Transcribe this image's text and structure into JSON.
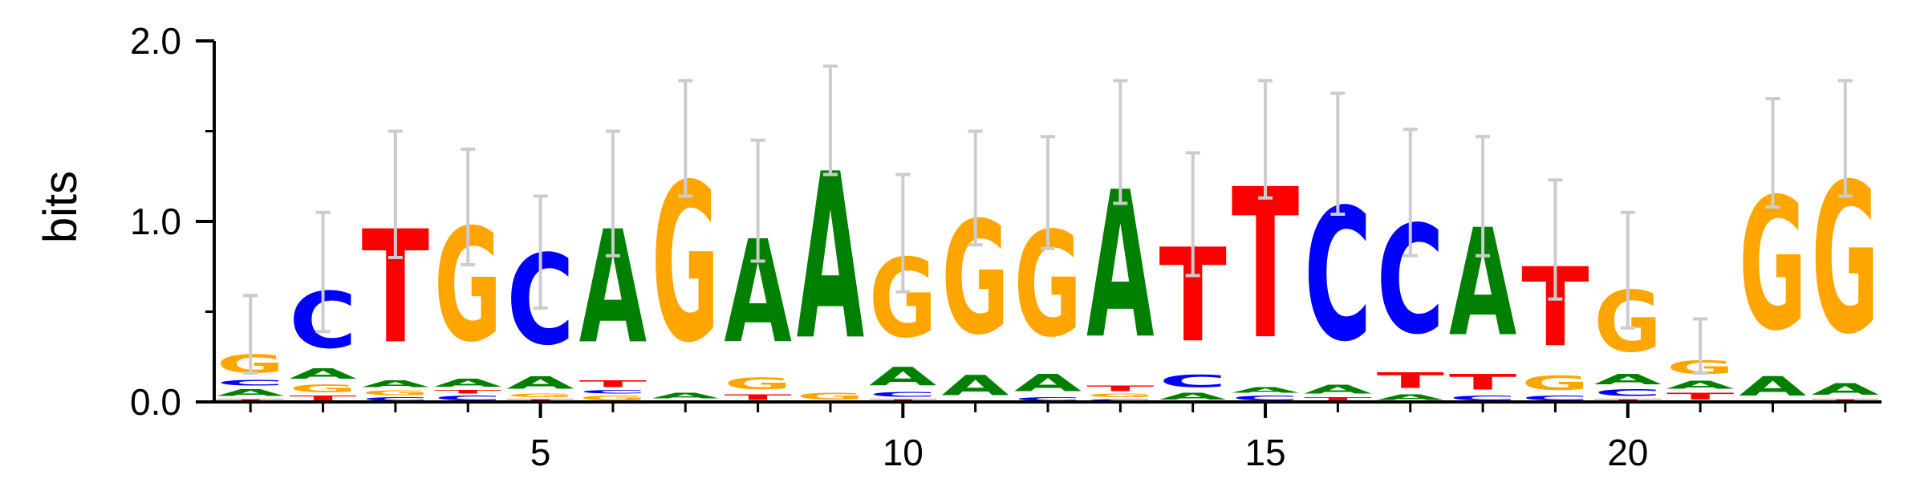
{
  "chart_data": {
    "type": "sequence-logo",
    "ylabel": "bits",
    "ylim": [
      0,
      2.0
    ],
    "y_ticks": [
      0.0,
      1.0,
      2.0
    ],
    "y_tick_labels": [
      "0.0",
      "1.0",
      "2.0"
    ],
    "x_ticks": [
      5,
      10,
      15,
      20
    ],
    "x_tick_labels": [
      "5",
      "10",
      "15",
      "20"
    ],
    "positions": 23,
    "colors": {
      "A": "#008000",
      "C": "#0000ff",
      "G": "#ffa500",
      "T": "#ff0000"
    },
    "error_bar_color": "#cccccc",
    "columns": [
      {
        "pos": 1,
        "stack": [
          [
            "T",
            0.02
          ],
          [
            "A",
            0.06
          ],
          [
            "C",
            0.05
          ],
          [
            "G",
            0.16
          ]
        ],
        "error": [
          0.16,
          0.59
        ]
      },
      {
        "pos": 2,
        "stack": [
          [
            "T",
            0.04
          ],
          [
            "G",
            0.07
          ],
          [
            "A",
            0.09
          ],
          [
            "C",
            0.5
          ]
        ],
        "error": [
          0.39,
          1.05
        ]
      },
      {
        "pos": 3,
        "stack": [
          [
            "C",
            0.03
          ],
          [
            "G",
            0.04
          ],
          [
            "A",
            0.06
          ],
          [
            "T",
            1.0
          ]
        ],
        "error": [
          0.8,
          1.5
        ]
      },
      {
        "pos": 4,
        "stack": [
          [
            "C",
            0.04
          ],
          [
            "T",
            0.03
          ],
          [
            "A",
            0.07
          ],
          [
            "G",
            1.0
          ]
        ],
        "error": [
          0.76,
          1.4
        ]
      },
      {
        "pos": 5,
        "stack": [
          [
            "T",
            0.02
          ],
          [
            "G",
            0.03
          ],
          [
            "A",
            0.11
          ],
          [
            "C",
            0.8
          ]
        ],
        "error": [
          0.52,
          1.14
        ]
      },
      {
        "pos": 6,
        "stack": [
          [
            "G",
            0.04
          ],
          [
            "C",
            0.03
          ],
          [
            "T",
            0.06
          ],
          [
            "A",
            1.0
          ]
        ],
        "error": [
          0.81,
          1.5
        ]
      },
      {
        "pos": 7,
        "stack": [
          [
            "C",
            0.01
          ],
          [
            "A",
            0.05
          ],
          [
            "G",
            1.4
          ]
        ],
        "error": [
          1.14,
          1.78
        ]
      },
      {
        "pos": 8,
        "stack": [
          [
            "T",
            0.05
          ],
          [
            "G",
            0.1
          ],
          [
            "A",
            0.91
          ]
        ],
        "error": [
          0.78,
          1.45
        ]
      },
      {
        "pos": 9,
        "stack": [
          [
            "G",
            0.06
          ],
          [
            "A",
            1.47
          ]
        ],
        "error": [
          1.26,
          1.86
        ]
      },
      {
        "pos": 10,
        "stack": [
          [
            "T",
            0.02
          ],
          [
            "C",
            0.04
          ],
          [
            "A",
            0.16
          ],
          [
            "G",
            0.7
          ]
        ],
        "error": [
          0.61,
          1.26
        ]
      },
      {
        "pos": 11,
        "stack": [
          [
            "A",
            0.18
          ],
          [
            "G",
            1.0
          ]
        ],
        "error": [
          0.87,
          1.5
        ]
      },
      {
        "pos": 12,
        "stack": [
          [
            "C",
            0.03
          ],
          [
            "A",
            0.15
          ],
          [
            "G",
            0.93
          ]
        ],
        "error": [
          0.85,
          1.47
        ]
      },
      {
        "pos": 13,
        "stack": [
          [
            "C",
            0.02
          ],
          [
            "G",
            0.03
          ],
          [
            "T",
            0.05
          ],
          [
            "A",
            1.3
          ]
        ],
        "error": [
          1.1,
          1.78
        ]
      },
      {
        "pos": 14,
        "stack": [
          [
            "A",
            0.06
          ],
          [
            "C",
            0.11
          ],
          [
            "T",
            0.83
          ]
        ],
        "error": [
          0.7,
          1.38
        ]
      },
      {
        "pos": 15,
        "stack": [
          [
            "C",
            0.04
          ],
          [
            "A",
            0.05
          ],
          [
            "T",
            1.33
          ]
        ],
        "error": [
          1.13,
          1.78
        ]
      },
      {
        "pos": 16,
        "stack": [
          [
            "T",
            0.03
          ],
          [
            "A",
            0.08
          ],
          [
            "C",
            1.17
          ]
        ],
        "error": [
          1.04,
          1.71
        ]
      },
      {
        "pos": 17,
        "stack": [
          [
            "A",
            0.05
          ],
          [
            "T",
            0.14
          ],
          [
            "C",
            0.96
          ]
        ],
        "error": [
          0.81,
          1.51
        ]
      },
      {
        "pos": 18,
        "stack": [
          [
            "C",
            0.04
          ],
          [
            "T",
            0.14
          ],
          [
            "A",
            0.95
          ]
        ],
        "error": [
          0.81,
          1.47
        ]
      },
      {
        "pos": 19,
        "stack": [
          [
            "C",
            0.04
          ],
          [
            "G",
            0.13
          ],
          [
            "T",
            0.7
          ]
        ],
        "error": [
          0.57,
          1.23
        ]
      },
      {
        "pos": 20,
        "stack": [
          [
            "T",
            0.02
          ],
          [
            "C",
            0.06
          ],
          [
            "A",
            0.09
          ],
          [
            "G",
            0.54
          ]
        ],
        "error": [
          0.41,
          1.05
        ]
      },
      {
        "pos": 21,
        "stack": [
          [
            "T",
            0.06
          ],
          [
            "A",
            0.07
          ],
          [
            "G",
            0.12
          ]
        ],
        "error": [
          0.16,
          0.46
        ]
      },
      {
        "pos": 22,
        "stack": [
          [
            "A",
            0.17
          ],
          [
            "G",
            1.17
          ]
        ],
        "error": [
          1.08,
          1.68
        ]
      },
      {
        "pos": 23,
        "stack": [
          [
            "T",
            0.02
          ],
          [
            "A",
            0.1
          ],
          [
            "G",
            1.33
          ]
        ],
        "error": [
          1.14,
          1.78
        ]
      }
    ]
  }
}
